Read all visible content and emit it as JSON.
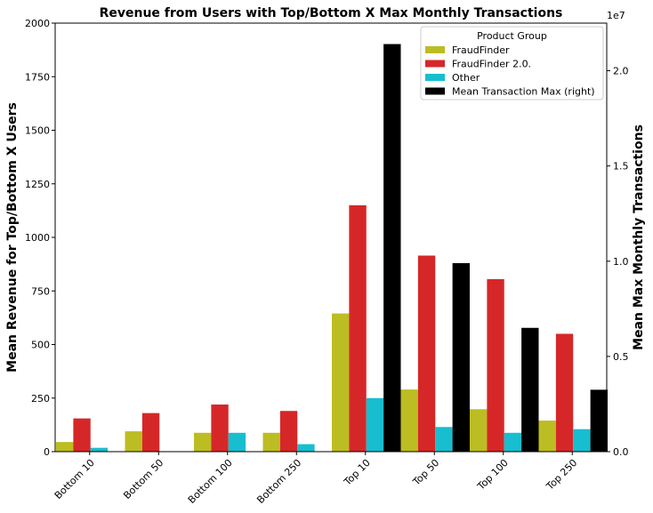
{
  "chart_data": {
    "type": "bar",
    "title": "Revenue from Users with Top/Bottom X Max Monthly Transactions",
    "categories": [
      "Bottom 10",
      "Bottom 50",
      "Bottom 100",
      "Bottom 250",
      "Top 10",
      "Top 50",
      "Top 100",
      "Top 250"
    ],
    "ylabel": "Mean Revenue for Top/Bottom X Users",
    "y2label": "Mean Max Monthly Transactions",
    "ylim": [
      0,
      2000
    ],
    "y2lim": [
      0,
      22500000
    ],
    "y2_exponent": "1e7",
    "yticks": [
      "0",
      "250",
      "500",
      "750",
      "1000",
      "1250",
      "1500",
      "1750",
      "2000"
    ],
    "y2ticks": [
      "0.0",
      "0.5",
      "1.0",
      "1.5",
      "2.0"
    ],
    "legend": {
      "title": "Product Group",
      "position": "top-right"
    },
    "series": [
      {
        "name": "FraudFinder",
        "color": "#bcbd22",
        "axis": "left",
        "values": [
          45,
          95,
          88,
          88,
          645,
          290,
          198,
          145
        ]
      },
      {
        "name": "FraudFinder 2.0.",
        "color": "#d62728",
        "axis": "left",
        "values": [
          155,
          180,
          220,
          190,
          1150,
          915,
          805,
          550
        ]
      },
      {
        "name": "Other",
        "color": "#17becf",
        "axis": "left",
        "values": [
          18,
          0,
          88,
          35,
          250,
          115,
          88,
          105
        ]
      },
      {
        "name": "Mean Transaction Max (right)",
        "color": "#000000",
        "axis": "right",
        "values": [
          0,
          0,
          0,
          0,
          21400000,
          9900000,
          6500000,
          3250000
        ]
      }
    ]
  }
}
